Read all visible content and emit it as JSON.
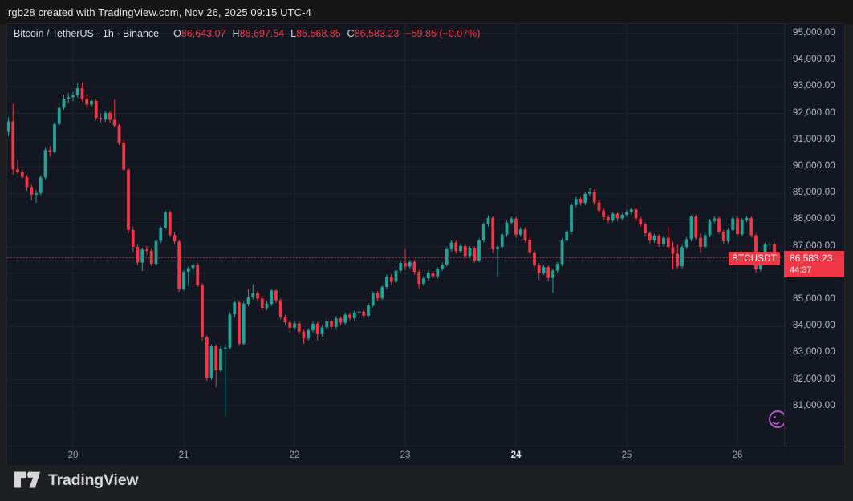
{
  "header": {
    "attribution": "rgb28 created with TradingView.com, Nov 26, 2025 09:15 UTC-4"
  },
  "symbol_row": {
    "title": "Bitcoin / TetherUS · 1h · Binance",
    "o_label": "O",
    "o_value": "86,643.07",
    "h_label": "H",
    "h_value": "86,697.54",
    "l_label": "L",
    "l_value": "86,568.85",
    "c_label": "C",
    "c_value": "86,583.23",
    "change": "−59.85 (−0.07%)"
  },
  "price_line": {
    "symbol_badge": "BTCUSDT",
    "price_text": "86,583.23",
    "countdown": "44:37"
  },
  "footer": {
    "logo_text": "TradingView"
  },
  "colors": {
    "pane_bg": "#131722",
    "grid": "#1f232f",
    "up": "#22a398",
    "down": "#f23645",
    "price_line": "#f23645",
    "axis_text": "#b6bac4",
    "purple_icon": "#b75ac4"
  },
  "chart_data": {
    "type": "candlestick",
    "title": "Bitcoin / TetherUS",
    "symbol": "BTCUSDT",
    "interval": "1h",
    "exchange": "Binance",
    "last_price": 86583.23,
    "current_bar": {
      "open": 86643.07,
      "high": 86697.54,
      "low": 86568.85,
      "close": 86583.23,
      "change": -59.85,
      "change_pct": -0.07
    },
    "price_axis": {
      "min": 81000,
      "max": 95000,
      "step": 1000,
      "labels": [
        "95,000.00",
        "94,000.00",
        "93,000.00",
        "92,000.00",
        "91,000.00",
        "90,000.00",
        "89,000.00",
        "88,000.00",
        "87,000.00",
        "86,000.00",
        "85,000.00",
        "84,000.00",
        "83,000.00",
        "82,000.00",
        "81,000.00"
      ]
    },
    "day_ticks": [
      {
        "index": 14,
        "label": "20",
        "bold": false
      },
      {
        "index": 38,
        "label": "21",
        "bold": false
      },
      {
        "index": 62,
        "label": "22",
        "bold": false
      },
      {
        "index": 86,
        "label": "23",
        "bold": false
      },
      {
        "index": 110,
        "label": "24",
        "bold": true
      },
      {
        "index": 134,
        "label": "25",
        "bold": false
      },
      {
        "index": 158,
        "label": "26",
        "bold": false
      }
    ],
    "candles": [
      [
        91300,
        91850,
        91150,
        91700
      ],
      [
        91700,
        92370,
        89700,
        89900
      ],
      [
        89900,
        90280,
        89730,
        89800
      ],
      [
        89800,
        89900,
        89540,
        89610
      ],
      [
        89610,
        89700,
        89090,
        89230
      ],
      [
        89230,
        89320,
        88740,
        88950
      ],
      [
        88950,
        89120,
        88640,
        89010
      ],
      [
        89010,
        89680,
        88930,
        89600
      ],
      [
        89600,
        90700,
        89540,
        90620
      ],
      [
        90620,
        90760,
        90380,
        90560
      ],
      [
        90560,
        91680,
        90500,
        91600
      ],
      [
        91600,
        92280,
        91540,
        92210
      ],
      [
        92210,
        92700,
        92130,
        92560
      ],
      [
        92560,
        92760,
        92380,
        92610
      ],
      [
        92610,
        92800,
        92460,
        92680
      ],
      [
        92680,
        93130,
        92600,
        92950
      ],
      [
        92950,
        93150,
        92450,
        92550
      ],
      [
        92550,
        92720,
        92210,
        92330
      ],
      [
        92330,
        92560,
        92240,
        92470
      ],
      [
        92470,
        92540,
        91740,
        91830
      ],
      [
        91830,
        91990,
        91640,
        91770
      ],
      [
        91770,
        92110,
        91690,
        92020
      ],
      [
        92020,
        92100,
        91660,
        91760
      ],
      [
        91760,
        92520,
        91480,
        91550
      ],
      [
        91550,
        91620,
        90810,
        90900
      ],
      [
        90900,
        90980,
        89840,
        89890
      ],
      [
        89890,
        89940,
        87500,
        87620
      ],
      [
        87620,
        87740,
        86800,
        86990
      ],
      [
        86990,
        87080,
        86300,
        86400
      ],
      [
        86400,
        86960,
        86080,
        86890
      ],
      [
        86890,
        87010,
        86700,
        86840
      ],
      [
        86840,
        86920,
        86270,
        86350
      ],
      [
        86350,
        87280,
        86280,
        87210
      ],
      [
        87210,
        87760,
        87130,
        87700
      ],
      [
        87700,
        88370,
        87620,
        88290
      ],
      [
        88290,
        88350,
        87360,
        87430
      ],
      [
        87430,
        87550,
        87090,
        87190
      ],
      [
        87190,
        87260,
        85300,
        85400
      ],
      [
        85400,
        86120,
        85330,
        86050
      ],
      [
        86050,
        86260,
        85520,
        86190
      ],
      [
        86190,
        86390,
        85930,
        86310
      ],
      [
        86310,
        86380,
        85480,
        85550
      ],
      [
        85550,
        85620,
        83450,
        83600
      ],
      [
        83600,
        83660,
        81950,
        82050
      ],
      [
        82050,
        83330,
        81990,
        83250
      ],
      [
        83250,
        83320,
        81710,
        82350
      ],
      [
        82350,
        83260,
        82290,
        83150
      ],
      [
        83150,
        83350,
        80600,
        83200
      ],
      [
        83200,
        84520,
        83130,
        84450
      ],
      [
        84450,
        84980,
        84330,
        84900
      ],
      [
        84900,
        84960,
        83270,
        83350
      ],
      [
        83350,
        84920,
        83290,
        84850
      ],
      [
        84850,
        85400,
        84760,
        85100
      ],
      [
        85100,
        85570,
        85010,
        85250
      ],
      [
        85250,
        85330,
        84930,
        85050
      ],
      [
        85050,
        85130,
        84590,
        84700
      ],
      [
        84700,
        84940,
        84620,
        84850
      ],
      [
        84850,
        85410,
        84770,
        85350
      ],
      [
        85350,
        85420,
        84880,
        84980
      ],
      [
        84980,
        85050,
        84260,
        84350
      ],
      [
        84350,
        84430,
        84040,
        84150
      ],
      [
        84150,
        84230,
        83760,
        83950
      ],
      [
        83950,
        84210,
        83870,
        84120
      ],
      [
        84120,
        84190,
        83710,
        83800
      ],
      [
        83800,
        83870,
        83340,
        83550
      ],
      [
        83550,
        83930,
        83470,
        83850
      ],
      [
        83850,
        84180,
        83770,
        84100
      ],
      [
        84100,
        84170,
        83450,
        83700
      ],
      [
        83700,
        84040,
        83620,
        83960
      ],
      [
        83960,
        84280,
        83880,
        84200
      ],
      [
        84200,
        84270,
        83890,
        83980
      ],
      [
        83980,
        84380,
        83900,
        84300
      ],
      [
        84300,
        84370,
        84050,
        84140
      ],
      [
        84140,
        84510,
        84060,
        84440
      ],
      [
        84440,
        84520,
        84210,
        84310
      ],
      [
        84310,
        84600,
        84230,
        84520
      ],
      [
        84520,
        84650,
        84410,
        84560
      ],
      [
        84560,
        84640,
        84290,
        84400
      ],
      [
        84400,
        84870,
        84330,
        84790
      ],
      [
        84790,
        85310,
        84720,
        85240
      ],
      [
        85240,
        85330,
        84950,
        85060
      ],
      [
        85060,
        85550,
        84990,
        85480
      ],
      [
        85480,
        85950,
        85410,
        85870
      ],
      [
        85870,
        85960,
        85560,
        85680
      ],
      [
        85680,
        86180,
        85610,
        86100
      ],
      [
        86100,
        86460,
        86020,
        86380
      ],
      [
        86380,
        86900,
        86120,
        86250
      ],
      [
        86250,
        86500,
        86140,
        86420
      ],
      [
        86420,
        86500,
        85950,
        86050
      ],
      [
        86050,
        86130,
        85420,
        85600
      ],
      [
        85600,
        85890,
        85520,
        85810
      ],
      [
        85810,
        86100,
        85730,
        86020
      ],
      [
        86020,
        86100,
        85770,
        85880
      ],
      [
        85880,
        86240,
        85800,
        86160
      ],
      [
        86160,
        86400,
        86080,
        86320
      ],
      [
        86320,
        86980,
        86250,
        86900
      ],
      [
        86900,
        87230,
        86820,
        87150
      ],
      [
        87150,
        87230,
        86740,
        86830
      ],
      [
        86830,
        87100,
        86750,
        87020
      ],
      [
        87020,
        87100,
        86550,
        86650
      ],
      [
        86650,
        87010,
        86570,
        86930
      ],
      [
        86930,
        87000,
        86390,
        86480
      ],
      [
        86480,
        87310,
        86410,
        87230
      ],
      [
        87230,
        87910,
        87150,
        87830
      ],
      [
        87830,
        88180,
        87740,
        88080
      ],
      [
        88080,
        88140,
        86760,
        86900
      ],
      [
        86900,
        87050,
        85870,
        86990
      ],
      [
        86990,
        87530,
        86910,
        87450
      ],
      [
        87450,
        87980,
        87370,
        87900
      ],
      [
        87900,
        88130,
        87820,
        88050
      ],
      [
        88050,
        88120,
        87330,
        87450
      ],
      [
        87450,
        87720,
        87370,
        87640
      ],
      [
        87640,
        87710,
        87150,
        87260
      ],
      [
        87260,
        87340,
        86690,
        86780
      ],
      [
        86780,
        86860,
        86210,
        86300
      ],
      [
        86300,
        86380,
        85730,
        86010
      ],
      [
        86010,
        86310,
        85930,
        86230
      ],
      [
        86230,
        86300,
        85710,
        85820
      ],
      [
        85820,
        86180,
        85270,
        86100
      ],
      [
        86100,
        86430,
        86020,
        86350
      ],
      [
        86350,
        87310,
        86270,
        87230
      ],
      [
        87230,
        87640,
        87150,
        87560
      ],
      [
        87560,
        88640,
        87460,
        88560
      ],
      [
        88560,
        88870,
        88480,
        88790
      ],
      [
        88790,
        88860,
        88540,
        88640
      ],
      [
        88640,
        89060,
        88560,
        88980
      ],
      [
        88980,
        89210,
        88890,
        89050
      ],
      [
        89050,
        89150,
        88560,
        88660
      ],
      [
        88660,
        88740,
        88240,
        88350
      ],
      [
        88350,
        88430,
        87990,
        88100
      ],
      [
        88100,
        88180,
        87880,
        87990
      ],
      [
        87990,
        88310,
        87910,
        88230
      ],
      [
        88230,
        88300,
        87950,
        88060
      ],
      [
        88060,
        88270,
        87980,
        88190
      ],
      [
        88190,
        88390,
        88110,
        88310
      ],
      [
        88310,
        88460,
        88210,
        88400
      ],
      [
        88400,
        88470,
        87960,
        88050
      ],
      [
        88050,
        88120,
        87740,
        87830
      ],
      [
        87830,
        87900,
        87400,
        87500
      ],
      [
        87500,
        87570,
        87120,
        87230
      ],
      [
        87230,
        87480,
        87150,
        87400
      ],
      [
        87400,
        87470,
        86990,
        87080
      ],
      [
        87080,
        87410,
        87000,
        87330
      ],
      [
        87330,
        87730,
        86900,
        86980
      ],
      [
        86980,
        87180,
        86130,
        86730
      ],
      [
        86730,
        87080,
        86180,
        86260
      ],
      [
        86260,
        87060,
        86180,
        86980
      ],
      [
        86980,
        87360,
        86900,
        87280
      ],
      [
        87280,
        88180,
        87200,
        88130
      ],
      [
        88130,
        88200,
        87250,
        87330
      ],
      [
        87330,
        87480,
        86780,
        86990
      ],
      [
        86990,
        87510,
        86910,
        87430
      ],
      [
        87430,
        88040,
        87350,
        87960
      ],
      [
        87960,
        88140,
        87880,
        88060
      ],
      [
        88060,
        88130,
        87480,
        87560
      ],
      [
        87560,
        87630,
        87110,
        87200
      ],
      [
        87200,
        87700,
        87120,
        87620
      ],
      [
        87620,
        88130,
        87540,
        88060
      ],
      [
        88060,
        88130,
        87380,
        87460
      ],
      [
        87460,
        88070,
        87380,
        88000
      ],
      [
        88000,
        88140,
        87920,
        88070
      ],
      [
        88070,
        88140,
        87340,
        87420
      ],
      [
        87420,
        87490,
        86030,
        86140
      ],
      [
        86140,
        86690,
        86060,
        86610
      ],
      [
        86610,
        87160,
        86530,
        87080
      ],
      [
        87080,
        87180,
        87000,
        87100
      ],
      [
        87100,
        87170,
        86600,
        86643
      ],
      [
        86643.07,
        86697.54,
        86568.85,
        86583.23
      ]
    ]
  }
}
